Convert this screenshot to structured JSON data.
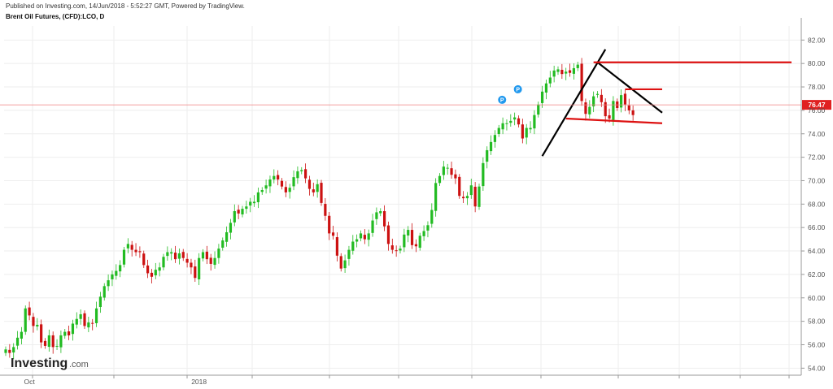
{
  "header": {
    "published": "Published on Investing.com, 14/Jun/2018 - 5:52:27 GMT, Powered by TradingView.",
    "symbol": "Brent Oil Futures, (CFD):LCO, D"
  },
  "logo": {
    "name": "Investing",
    "suffix": ".com"
  },
  "colors": {
    "up": "#22bb22",
    "down": "#cc1111",
    "trend_black": "#000000",
    "level_red": "#dd1111",
    "grid": "#eeeeee",
    "marker": "#2299ee"
  },
  "markers": [
    {
      "label": "P",
      "index": 125,
      "price": 76.9
    },
    {
      "label": "P",
      "index": 129,
      "price": 77.8
    }
  ],
  "chart_data": {
    "type": "candlestick",
    "title": "Brent Oil Futures, (CFD):LCO, D",
    "ylim": [
      53.4,
      83.2
    ],
    "y_ticks": [
      "54.00",
      "56.00",
      "58.00",
      "60.00",
      "62.00",
      "64.00",
      "66.00",
      "68.00",
      "70.00",
      "72.00",
      "74.00",
      "76.00",
      "78.00",
      "80.00",
      "82.00"
    ],
    "x_ticks": [
      {
        "index": 6,
        "label": "Oct"
      },
      {
        "index": 49,
        "label": "2018"
      }
    ],
    "last_price": "76.47",
    "last_price_value": 76.47,
    "closes": [
      55.6,
      55.3,
      55.8,
      56.6,
      57.1,
      59.1,
      58.5,
      57.6,
      57.7,
      56.2,
      55.9,
      56.8,
      55.8,
      55.9,
      56.8,
      57.1,
      56.8,
      57.8,
      58.2,
      58.6,
      57.6,
      57.9,
      57.8,
      59.1,
      60.1,
      61.0,
      61.5,
      62.0,
      62.3,
      62.8,
      64.1,
      64.6,
      64.1,
      63.9,
      63.9,
      62.8,
      62.1,
      61.8,
      62.4,
      62.6,
      63.5,
      63.9,
      63.9,
      63.3,
      63.8,
      63.4,
      63.0,
      62.6,
      61.7,
      63.4,
      63.9,
      63.3,
      62.9,
      63.4,
      64.2,
      64.9,
      65.6,
      66.4,
      67.4,
      67.2,
      67.6,
      67.8,
      68.2,
      68.2,
      69.0,
      69.2,
      69.6,
      70.1,
      70.4,
      70.1,
      69.5,
      69.0,
      69.4,
      70.3,
      70.8,
      70.9,
      70.2,
      69.3,
      69.0,
      69.7,
      68.1,
      67.0,
      65.5,
      65.3,
      63.6,
      62.5,
      63.2,
      64.1,
      64.8,
      65.0,
      65.5,
      65.0,
      65.5,
      66.6,
      67.3,
      67.4,
      66.1,
      64.6,
      64.1,
      64.0,
      64.2,
      65.4,
      65.8,
      64.5,
      64.4,
      65.3,
      65.7,
      66.2,
      67.5,
      69.8,
      70.4,
      71.2,
      71.1,
      70.5,
      70.2,
      68.7,
      68.5,
      68.7,
      69.6,
      67.8,
      69.5,
      71.5,
      72.6,
      73.3,
      73.9,
      74.5,
      74.9,
      74.9,
      75.1,
      75.4,
      74.8,
      73.6,
      74.5,
      74.5,
      75.6,
      76.5,
      77.6,
      78.3,
      78.8,
      79.4,
      79.5,
      79.1,
      79.3,
      79.2,
      79.6,
      79.9,
      76.8,
      75.7,
      76.3,
      77.2,
      77.4,
      76.7,
      75.5,
      75.3,
      76.8,
      76.2,
      77.3,
      76.5,
      76.0,
      75.6
    ]
  }
}
